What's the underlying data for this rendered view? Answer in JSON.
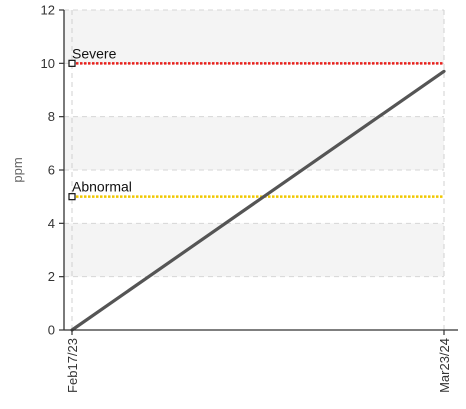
{
  "chart_data": {
    "type": "line",
    "ylabel": "ppm",
    "xlabel": "",
    "ylim": [
      0,
      12
    ],
    "y_ticks": [
      0,
      2,
      4,
      6,
      8,
      10,
      12
    ],
    "x_ticks": [
      "Feb17/23",
      "Mar23/24"
    ],
    "grid": true,
    "series": [
      {
        "x": [
          "Feb17/23",
          "Mar23/24"
        ],
        "values": [
          0,
          9.7
        ],
        "color": "#555555"
      }
    ],
    "thresholds": [
      {
        "name": "Severe",
        "value": 10,
        "color": "#e8201c"
      },
      {
        "name": "Abnormal",
        "value": 5,
        "color": "#f0c800"
      }
    ]
  }
}
